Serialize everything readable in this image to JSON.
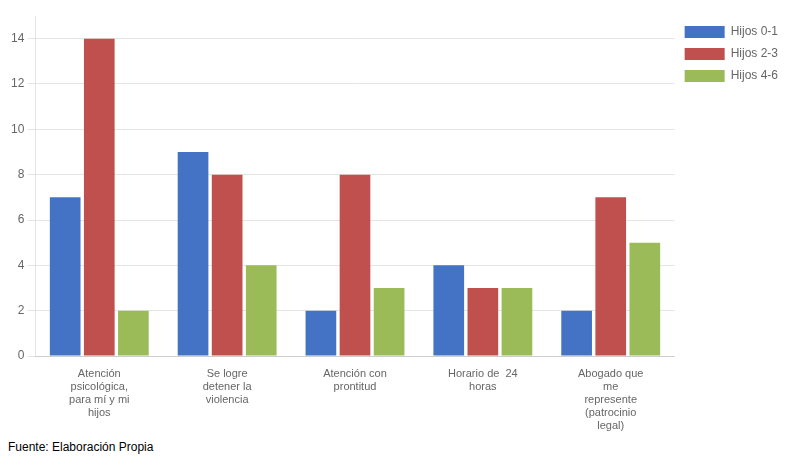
{
  "chart_data": {
    "type": "bar",
    "categories": [
      "Atención\npsicológica,\npara mí y mi\nhijos",
      "Se logre\ndetener la\nviolencia",
      "Atención con\nprontitud",
      "Horario de  24\nhoras",
      "Abogado que\nme\nrepresente\n(patrocinio\nlegal)"
    ],
    "series": [
      {
        "name": "Hijos 0-1",
        "color": "#4472C4",
        "values": [
          7,
          9,
          2,
          4,
          2
        ]
      },
      {
        "name": "Hijos 2-3",
        "color": "#C0504D",
        "values": [
          14,
          8,
          8,
          3,
          7
        ]
      },
      {
        "name": "Hijos 4-6",
        "color": "#9BBB59",
        "values": [
          2,
          4,
          3,
          3,
          5
        ]
      }
    ],
    "ylim": [
      0,
      15
    ],
    "yticks": [
      0,
      2,
      4,
      6,
      8,
      10,
      12,
      14
    ],
    "grid": true,
    "legend": "right",
    "annotations": [
      "Fuente: Elaboración Propia"
    ]
  }
}
